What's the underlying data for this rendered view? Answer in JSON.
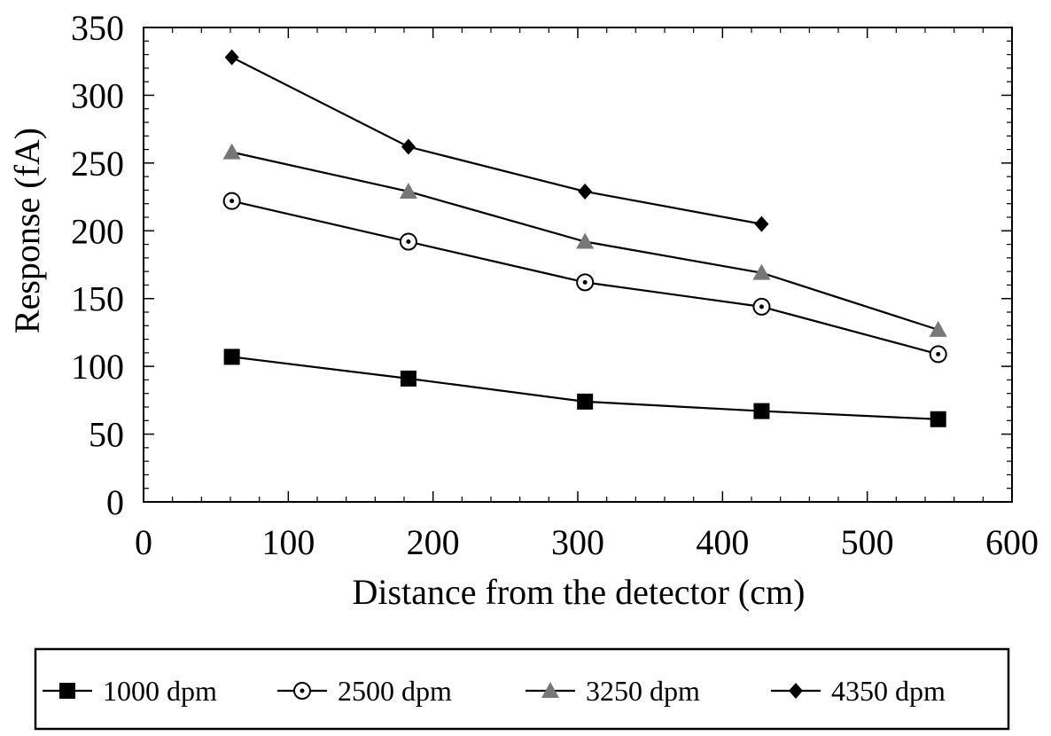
{
  "chart_data": {
    "type": "line",
    "title": "",
    "xlabel": "Distance from the detector (cm)",
    "ylabel": "Response (fA)",
    "xlim": [
      0,
      600
    ],
    "ylim": [
      0,
      350
    ],
    "xticks": [
      0,
      100,
      200,
      300,
      400,
      500,
      600
    ],
    "yticks": [
      0,
      50,
      100,
      150,
      200,
      250,
      300,
      350
    ],
    "xticklabels": [
      "0",
      "100",
      "200",
      "300",
      "400",
      "500",
      "600"
    ],
    "yticklabels": [
      "0",
      "50",
      "100",
      "150",
      "200",
      "250",
      "300",
      "350"
    ],
    "grid": false,
    "legend_position": "bottom",
    "series": [
      {
        "name": "1000 dpm",
        "marker": "square-filled",
        "color": "#000000",
        "x": [
          61,
          183,
          305,
          427,
          549
        ],
        "y": [
          107,
          91,
          74,
          67,
          61
        ]
      },
      {
        "name": "2500 dpm",
        "marker": "circle-dot",
        "color": "#000000",
        "x": [
          61,
          183,
          305,
          427,
          549
        ],
        "y": [
          222,
          192,
          162,
          144,
          109
        ]
      },
      {
        "name": "3250 dpm",
        "marker": "triangle-filled",
        "color": "#777777",
        "x": [
          61,
          183,
          305,
          427,
          549
        ],
        "y": [
          258,
          229,
          192,
          169,
          127
        ]
      },
      {
        "name": "4350 dpm",
        "marker": "diamond-filled",
        "color": "#000000",
        "x": [
          61,
          183,
          305,
          427
        ],
        "y": [
          328,
          262,
          229,
          205
        ]
      }
    ]
  }
}
